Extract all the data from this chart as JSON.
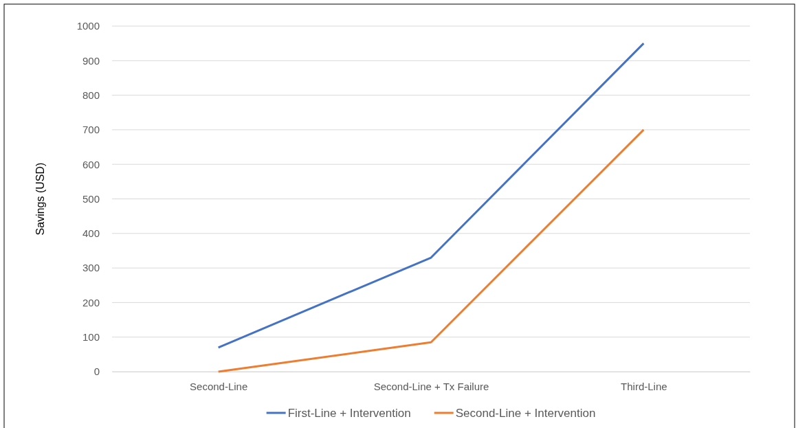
{
  "chart_data": {
    "type": "line",
    "ylabel": "Savings (USD)",
    "categories": [
      "Second-Line",
      "Second-Line + Tx Failure",
      "Third-Line"
    ],
    "series": [
      {
        "name": "First-Line + Intervention",
        "color": "#4472c4",
        "values": [
          70,
          330,
          950
        ]
      },
      {
        "name": "Second-Line + Intervention",
        "color": "#ed7d31",
        "values": [
          0,
          85,
          700
        ]
      }
    ],
    "ylim": [
      0,
      1000
    ],
    "yticks": [
      0,
      100,
      200,
      300,
      400,
      500,
      600,
      700,
      800,
      900,
      1000
    ],
    "grid": "y",
    "legend": "bottom",
    "marker": "none",
    "line_style": "solid"
  }
}
